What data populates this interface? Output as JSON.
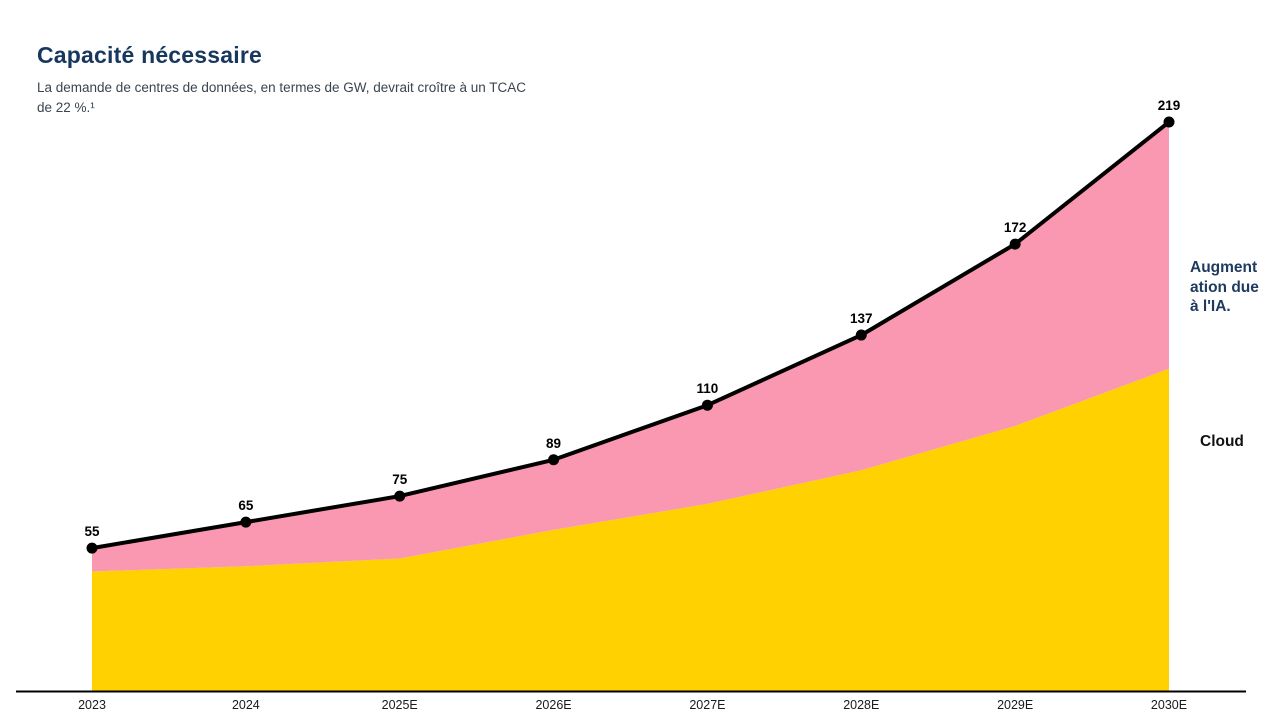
{
  "page": {
    "title": "Capacité nécessaire",
    "subtitle_lines": [
      "La demande de centres de données, en termes de GW, devrait croître à un TCAC",
      "de 22 %.¹"
    ]
  },
  "legend": {
    "ai_lines": [
      "Augment",
      "ation due",
      "à l'IA."
    ],
    "ai_full": "Augmentation due à l'IA.",
    "cloud": "Cloud"
  },
  "colors": {
    "title": "#17375E",
    "subtitle": "#3A4550",
    "cloud_area": "#FFD100",
    "ai_area": "#F998B0",
    "line": "#000000",
    "marker": "#000000",
    "data_label": "#000000",
    "axis": "#000000",
    "tick_label": "#1A1A1A",
    "ai_label": "#1E3A5F",
    "cloud_label": "#111111"
  },
  "chart_data": {
    "type": "area",
    "stacked": true,
    "unit": "GW",
    "title": "Capacité nécessaire",
    "categories": [
      "2023",
      "2024",
      "2025E",
      "2026E",
      "2027E",
      "2028E",
      "2029E",
      "2030E"
    ],
    "series": [
      {
        "name": "Cloud",
        "values": [
          46,
          48,
          51,
          62,
          72,
          85,
          102,
          124
        ],
        "color": "#FFD100"
      },
      {
        "name": "Augmentation due à l'IA.",
        "values": [
          9,
          17,
          24,
          27,
          38,
          52,
          70,
          95
        ],
        "color": "#F998B0"
      }
    ],
    "totals": [
      55,
      65,
      75,
      89,
      110,
      137,
      172,
      219
    ],
    "total_labels": [
      "55",
      "65",
      "75",
      "89",
      "110",
      "137",
      "172",
      "219"
    ],
    "xlabel": "",
    "ylabel": "GW",
    "ylim": [
      0,
      230
    ],
    "grid": false,
    "legend_position": "right",
    "data_labels_shown": "totals"
  }
}
